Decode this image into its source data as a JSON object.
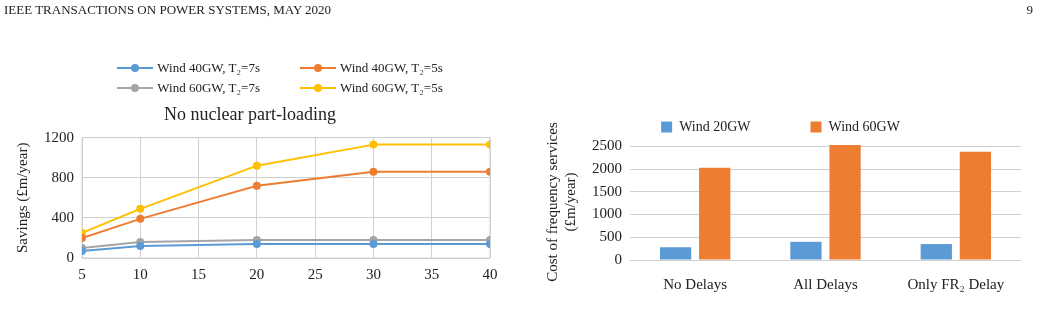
{
  "chart_data": [
    {
      "type": "line",
      "title": "No nuclear part-loading",
      "ylabel": "Savings (£m/year)",
      "annotations": [
        "IEEE TRANSACTIONS ON POWER SYSTEMS, MAY 2020",
        "9"
      ],
      "x": [
        5,
        10,
        20,
        30,
        40
      ],
      "series": [
        {
          "name": "Wind 40GW, T₂=7s",
          "color": "#5b9bd5",
          "values": [
            70,
            120,
            140,
            140,
            140
          ]
        },
        {
          "name": "Wind 40GW, T₂=5s",
          "color": "#ed7d31",
          "values": [
            200,
            390,
            720,
            860,
            860
          ]
        },
        {
          "name": "Wind 60GW, T₂=7s",
          "color": "#a5a5a5",
          "values": [
            100,
            160,
            180,
            180,
            180
          ]
        },
        {
          "name": "Wind 60GW, T₂=5s",
          "color": "#ffc000",
          "values": [
            250,
            490,
            920,
            1130,
            1130
          ]
        }
      ],
      "xlim": [
        5,
        40
      ],
      "xticks": [
        5,
        10,
        15,
        20,
        25,
        30,
        35,
        40
      ],
      "ylim": [
        0,
        1200
      ],
      "yticks": [
        0,
        400,
        800,
        1200
      ],
      "grid": true,
      "legend": "top",
      "marker": "circle",
      "line_style": "solid"
    },
    {
      "type": "bar",
      "ylabel": "Cost of frequency services (£m/year)",
      "categories": [
        "No Delays",
        "All Delays",
        "Only FR₂ Delay"
      ],
      "series": [
        {
          "name": "Wind 20GW",
          "color": "#5b9bd5",
          "values": [
            280,
            400,
            350
          ]
        },
        {
          "name": "Wind 60GW",
          "color": "#ed7d31",
          "values": [
            2030,
            2530,
            2380
          ]
        }
      ],
      "ylim": [
        0,
        2550
      ],
      "yticks": [
        0,
        500,
        1000,
        1500,
        2000,
        2500
      ],
      "grid": "y",
      "legend": "top"
    }
  ]
}
